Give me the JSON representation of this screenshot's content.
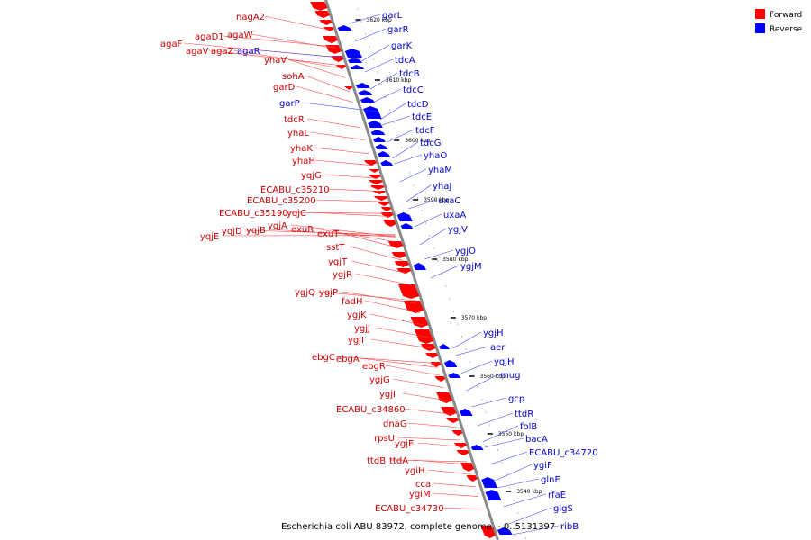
{
  "legend": {
    "forward_label": "Forward",
    "reverse_label": "Reverse",
    "forward_color": "#ff0000",
    "reverse_color": "#0000ff"
  },
  "caption": "Escherichia coli ABU 83972, complete genome. - 0..5131397",
  "ticks": [
    "3620 kbp",
    "3610 kbp",
    "3600 kbp",
    "3590 kbp",
    "3580 kbp",
    "3570 kbp",
    "3560 kbp",
    "3550 kbp",
    "3540 kbp"
  ],
  "forward_genes": [
    "nagA2",
    "agaD1",
    "agaW",
    "agaF",
    "agaV",
    "agaZ",
    "yhaV",
    "sohA",
    "garD",
    "tdcR",
    "yhaL",
    "yhaK",
    "yhaH",
    "yqjG",
    "ECABU_c35210",
    "ECABU_c35200",
    "ECABU_c35190",
    "yqjC",
    "yqjE",
    "yqjD",
    "yqjB",
    "yqjA",
    "exuR",
    "exuT",
    "sstT",
    "ygjT",
    "ygjR",
    "ygjQ",
    "ygjP",
    "fadH",
    "ygjK",
    "ygjJ",
    "ygjI",
    "ebgC",
    "ebgA",
    "ebgR",
    "ygjG",
    "ygjI",
    "ECABU_c34860",
    "dnaG",
    "rpsU",
    "ygjE",
    "ttdB",
    "ttdA",
    "ygiH",
    "cca",
    "ygiM",
    "ECABU_c34730"
  ],
  "reverse_genes": [
    "garL",
    "garR",
    "garK",
    "agaR",
    "tdcA",
    "tdcB",
    "garP",
    "tdcC",
    "tdcD",
    "tdcE",
    "tdcF",
    "tdcG",
    "yhaO",
    "yhaM",
    "yhaJ",
    "uxaC",
    "uxaA",
    "ygjV",
    "ygjO",
    "ygjM",
    "ygjH",
    "aer",
    "yqjH",
    "mug",
    "gcp",
    "ttdR",
    "folB",
    "bacA",
    "ECABU_c34720",
    "ygiF",
    "glnE",
    "rfaE",
    "glgS",
    "ribB"
  ]
}
